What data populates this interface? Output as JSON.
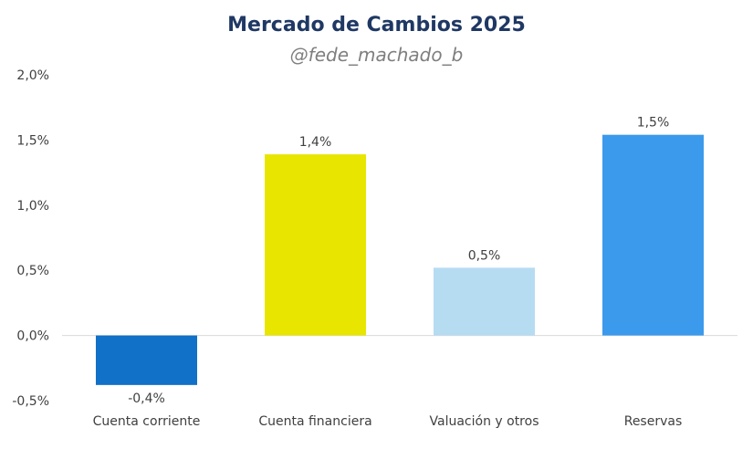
{
  "title": "Mercado de Cambios 2025",
  "subtitle": "@fede_machado_b",
  "chart_data": {
    "type": "bar",
    "title": "Mercado de Cambios 2025",
    "subtitle": "@fede_machado_b",
    "categories": [
      "Cuenta corriente",
      "Cuenta financiera",
      "Valuación y otros",
      "Reservas"
    ],
    "values": [
      -0.38,
      1.39,
      0.52,
      1.54
    ],
    "data_labels": [
      "-0,4%",
      "1,4%",
      "0,5%",
      "1,5%"
    ],
    "colors": [
      "#1170c8",
      "#e8e600",
      "#b6dcf2",
      "#3b9aeb"
    ],
    "ylim": [
      -0.5,
      2.0
    ],
    "yticks": [
      -0.5,
      0,
      0.5,
      1.0,
      1.5,
      2.0
    ],
    "ytick_labels": [
      "-0,5%",
      "0,0%",
      "0,5%",
      "1,0%",
      "1,5%",
      "2,0%"
    ],
    "grid": false,
    "legend": "none"
  }
}
